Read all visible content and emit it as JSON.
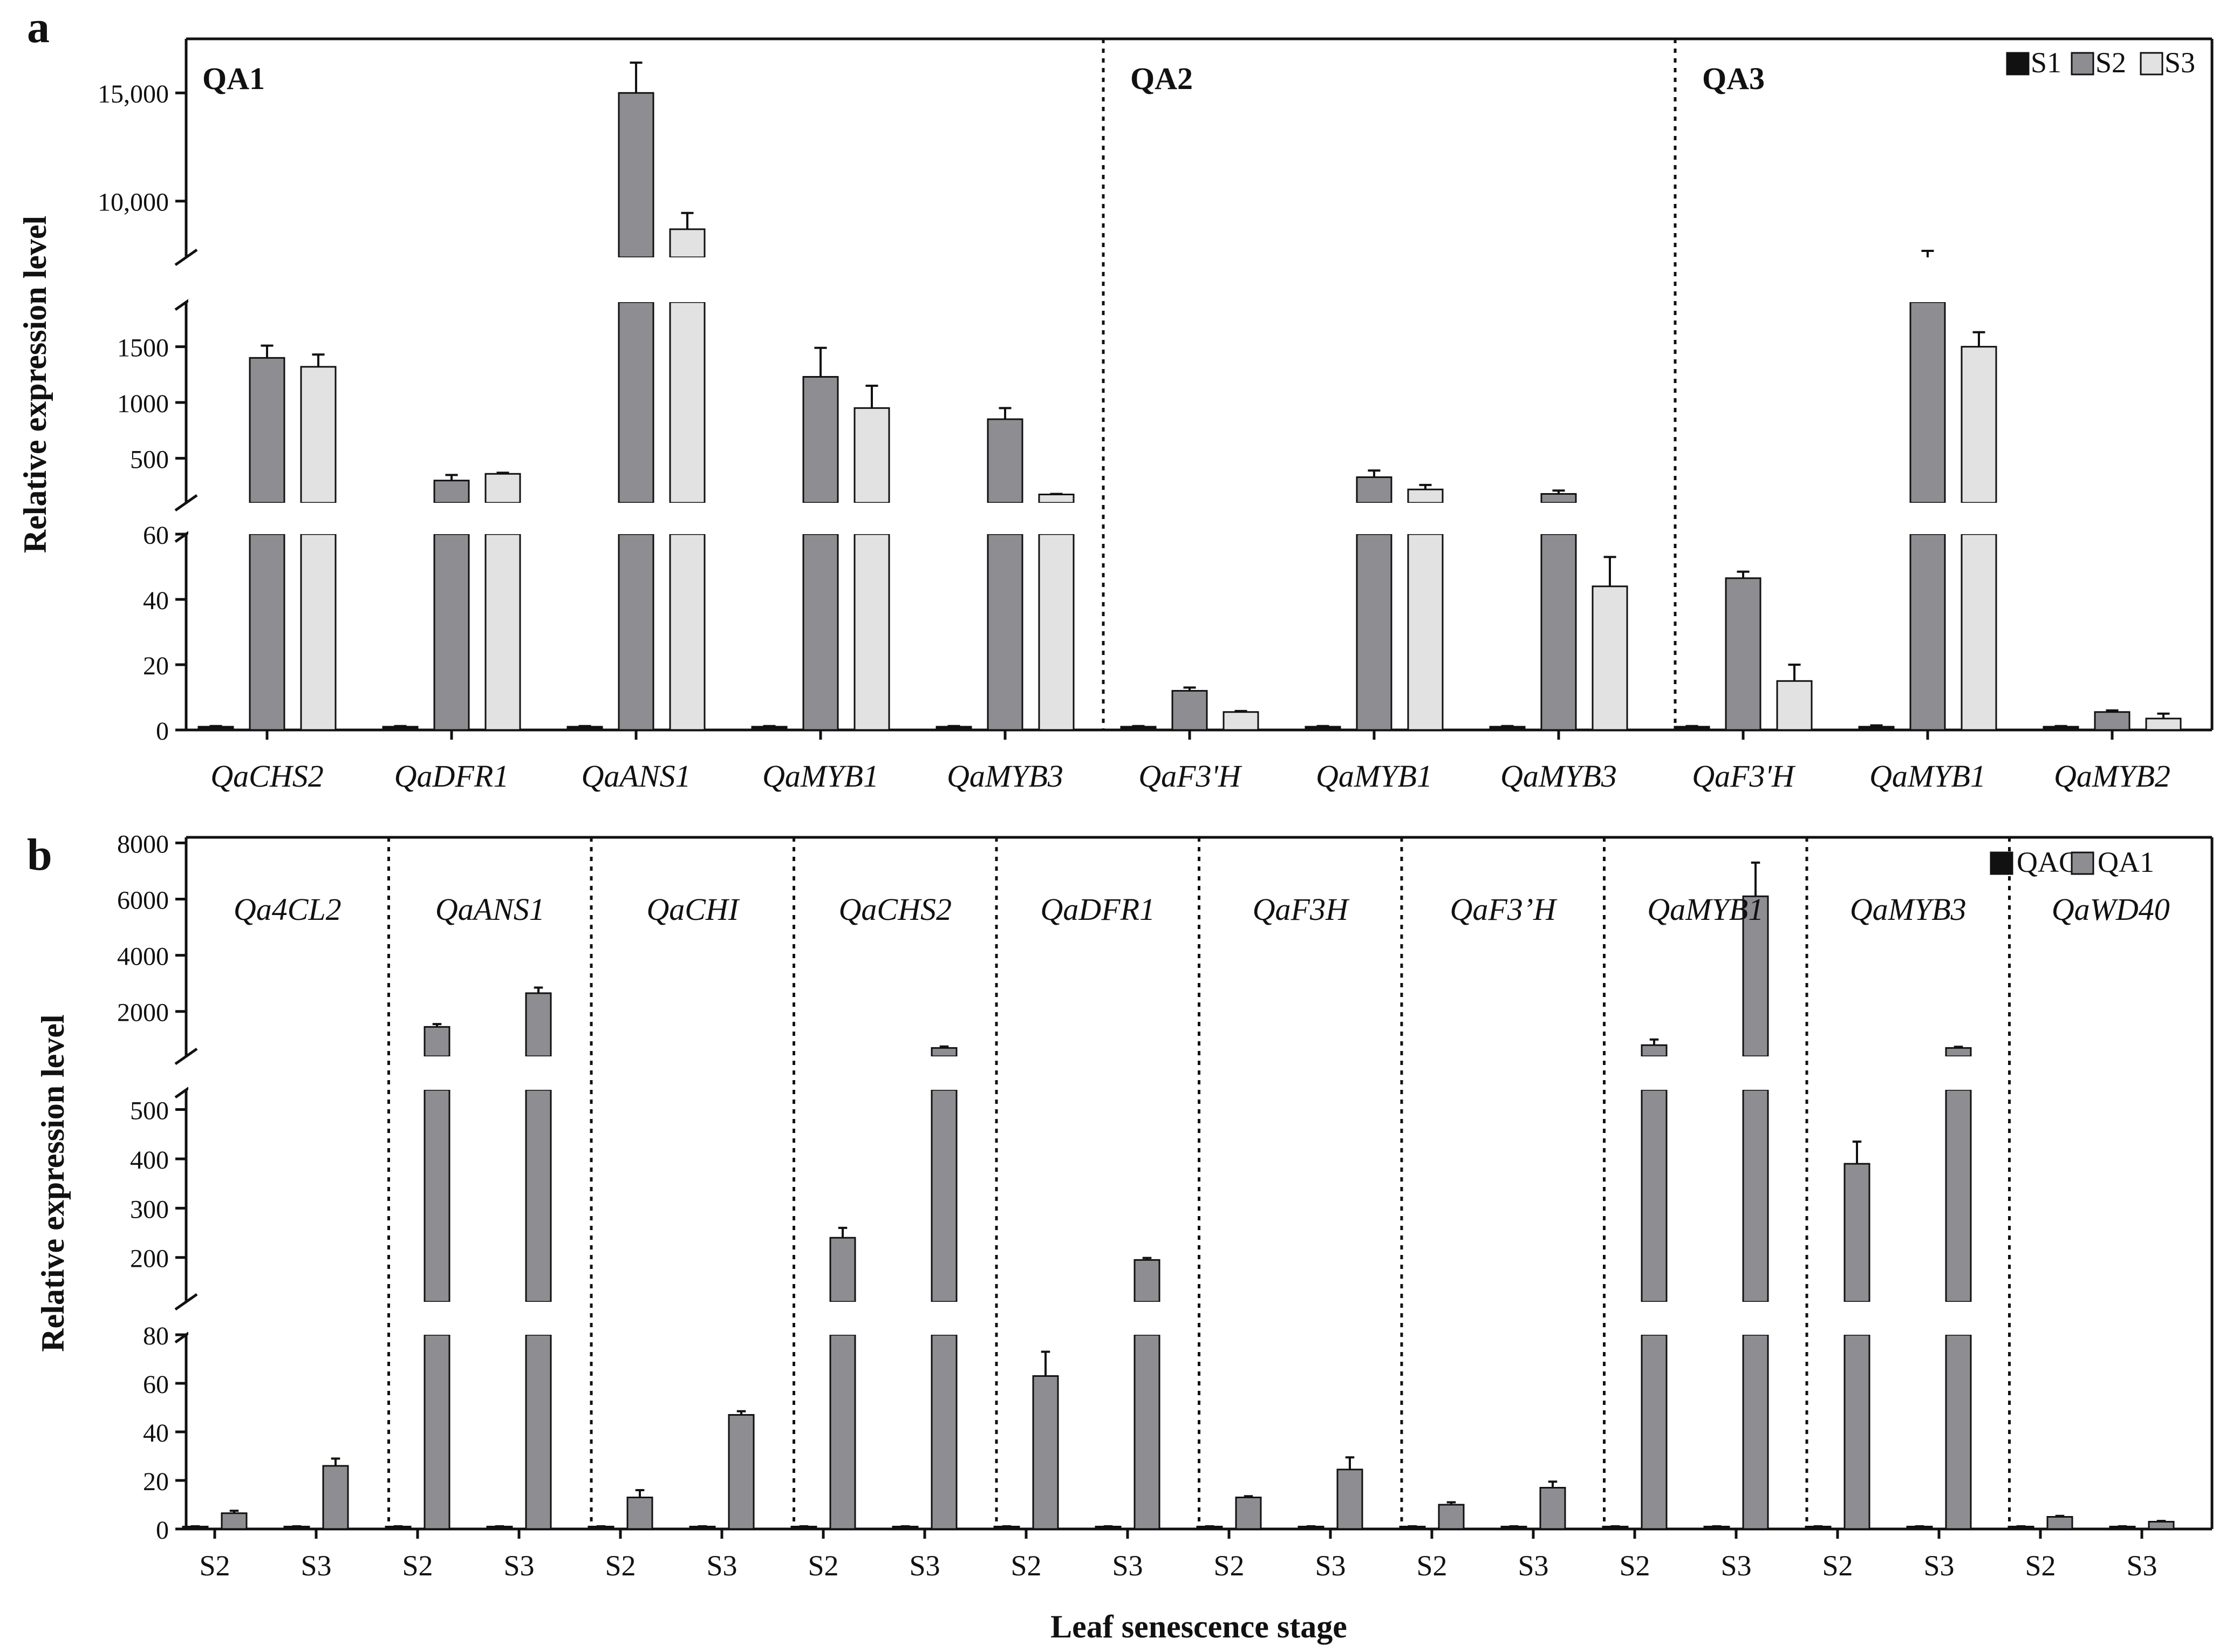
{
  "colors": {
    "S1": "#111111",
    "S2": "#8e8e92",
    "S3": "#e2e2e2",
    "QAC": "#111111",
    "QA1": "#8e8e92",
    "axis": "#111111"
  },
  "chart_data": [
    {
      "panel_label": "a",
      "type": "bar",
      "ylabel": "Relative expression level",
      "legend": [
        "S1",
        "S2",
        "S3"
      ],
      "legend_position": "top-right",
      "group_titles": [
        "QA1",
        "QA2",
        "QA3"
      ],
      "group_sizes": [
        5,
        3,
        3
      ],
      "categories": [
        "QaCHS2",
        "QaDFR1",
        "QaANS1",
        "QaMYB1",
        "QaMYB3",
        "QaF3'H",
        "QaMYB1",
        "QaMYB3",
        "QaF3'H",
        "QaMYB1",
        "QaMYB2"
      ],
      "y_segments": [
        {
          "range": [
            0,
            60
          ],
          "ticks": [
            "0",
            "20",
            "40",
            "60"
          ],
          "tick_values": [
            0,
            20,
            40,
            60
          ]
        },
        {
          "range": [
            100,
            1900
          ],
          "ticks": [
            "500",
            "1000",
            "1500"
          ],
          "tick_values": [
            500,
            1000,
            1500
          ]
        },
        {
          "range": [
            7400,
            17500
          ],
          "ticks": [
            "10,000",
            "15,000"
          ],
          "tick_values": [
            10000,
            15000
          ]
        }
      ],
      "series": [
        {
          "name": "S1",
          "values": [
            1,
            1,
            1,
            1,
            1,
            1,
            1,
            1,
            1,
            1,
            1
          ],
          "errors": [
            0.2,
            0.2,
            0.2,
            0.2,
            0.2,
            0.2,
            0.2,
            0.2,
            0.2,
            0.4,
            0.2
          ]
        },
        {
          "name": "S2",
          "values": [
            1400,
            300,
            15000,
            1230,
            850,
            12,
            330,
            180,
            46.5,
            7000,
            5.5
          ],
          "errors": [
            110,
            50,
            1400,
            260,
            100,
            1,
            60,
            30,
            2,
            700,
            0.5
          ]
        },
        {
          "name": "S3",
          "values": [
            1320,
            360,
            8700,
            950,
            175,
            5.5,
            220,
            44,
            15,
            1500,
            3.5
          ],
          "errors": [
            110,
            10,
            750,
            200,
            5,
            0.3,
            40,
            9,
            5,
            130,
            1.5
          ]
        }
      ]
    },
    {
      "panel_label": "b",
      "type": "bar",
      "ylabel": "Relative expression level",
      "xlabel": "Leaf senescence stage",
      "legend": [
        "QAC",
        "QA1"
      ],
      "legend_position": "top-right",
      "group_titles": [
        "Qa4CL2",
        "QaANS1",
        "QaCHI",
        "QaCHS2",
        "QaDFR1",
        "QaF3H",
        "QaF3’H",
        "QaMYB1",
        "QaMYB3",
        "QaWD40"
      ],
      "stages": [
        "S2",
        "S3"
      ],
      "y_segments": [
        {
          "range": [
            0,
            80
          ],
          "ticks": [
            "0",
            "20",
            "40",
            "60",
            "80"
          ],
          "tick_values": [
            0,
            20,
            40,
            60,
            80
          ]
        },
        {
          "range": [
            110,
            540
          ],
          "ticks": [
            "200",
            "300",
            "400",
            "500"
          ],
          "tick_values": [
            200,
            300,
            400,
            500
          ]
        },
        {
          "range": [
            400,
            8200
          ],
          "ticks": [
            "2000",
            "4000",
            "6000",
            "8000"
          ],
          "tick_values": [
            2000,
            4000,
            6000,
            8000
          ]
        }
      ],
      "series": [
        {
          "name": "QAC",
          "values": [
            1,
            1,
            1,
            1,
            1,
            1,
            1,
            1,
            1,
            1,
            1,
            1,
            1,
            1,
            1,
            1,
            1,
            1,
            1,
            1
          ],
          "errors": [
            0.1,
            0.1,
            0.1,
            0.1,
            0.1,
            0.1,
            0.1,
            0.1,
            0.1,
            0.1,
            0.1,
            0.1,
            0.1,
            0.1,
            0.1,
            0.1,
            0.1,
            0.1,
            0.1,
            0.1
          ]
        },
        {
          "name": "QA1",
          "values": [
            6.5,
            26,
            1450,
            2650,
            13,
            47,
            240,
            700,
            63,
            195,
            13,
            24.5,
            10,
            17,
            800,
            6100,
            390,
            700,
            5,
            3
          ],
          "errors": [
            1,
            3,
            100,
            200,
            3,
            1.5,
            20,
            50,
            10,
            4,
            0.5,
            5,
            1,
            2.5,
            200,
            1200,
            45,
            40,
            0.4,
            0.3
          ]
        }
      ]
    }
  ]
}
